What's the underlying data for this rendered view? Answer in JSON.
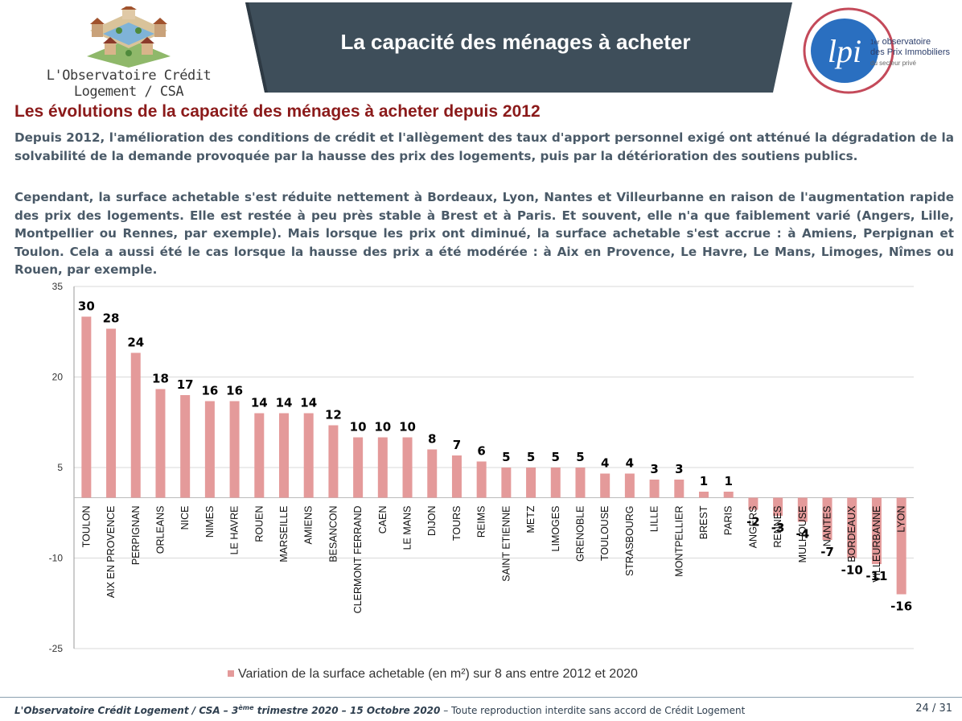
{
  "header": {
    "org_logo_caption": "L'Observatoire Crédit Logement / CSA",
    "title": "La capacité des ménages à acheter",
    "lpi_logo_mark": "lpi",
    "lpi_line1": "observatoire",
    "lpi_superscript": "1er",
    "lpi_line2": "des Prix Immobiliers",
    "lpi_line3": "du secteur privé"
  },
  "content": {
    "subtitle": "Les évolutions de la capacité des ménages à acheter depuis 2012",
    "paragraph1": "Depuis 2012, l'amélioration des conditions de crédit et l'allègement des taux d'apport personnel exigé ont atténué la dégradation de la solvabilité de la demande provoquée par la hausse des prix des logements, puis par la détérioration des soutiens publics.",
    "paragraph2": "Cependant, la surface achetable s'est réduite nettement à Bordeaux, Lyon, Nantes et Villeurbanne en raison de l'augmentation rapide des prix des logements. Elle est restée à peu près stable à Brest et à Paris. Et souvent, elle n'a que faiblement varié (Angers, Lille, Montpellier ou Rennes, par exemple). Mais lorsque les prix ont diminué, la surface achetable s'est accrue : à Amiens, Perpignan et Toulon. Cela a aussi été le cas lorsque la hausse des prix a été modérée : à Aix en Provence, Le Havre, Le Mans, Limoges, Nîmes ou Rouen, par exemple."
  },
  "chart_data": {
    "type": "bar",
    "categories": [
      "TOULON",
      "AIX EN PROVENCE",
      "PERPIGNAN",
      "ORLEANS",
      "NICE",
      "NIMES",
      "LE HAVRE",
      "ROUEN",
      "MARSEILLE",
      "AMIENS",
      "BESANCON",
      "CLERMONT FERRAND",
      "CAEN",
      "LE MANS",
      "DIJON",
      "TOURS",
      "REIMS",
      "SAINT ETIENNE",
      "METZ",
      "LIMOGES",
      "GRENOBLE",
      "TOULOUSE",
      "STRASBOURG",
      "LILLE",
      "MONTPELLIER",
      "BREST",
      "PARIS",
      "ANGERS",
      "RENNES",
      "MULHOUSE",
      "NANTES",
      "BORDEAUX",
      "VILLEURBANNE",
      "LYON"
    ],
    "values": [
      30,
      28,
      24,
      18,
      17,
      16,
      16,
      14,
      14,
      14,
      12,
      10,
      10,
      10,
      8,
      7,
      6,
      5,
      5,
      5,
      5,
      4,
      4,
      3,
      3,
      1,
      1,
      -2,
      -3,
      -4,
      -7,
      -10,
      -11,
      -16
    ],
    "series_name": "Variation de la surface achetable (en m²) sur 8 ans entre 2012 et 2020",
    "ylim": [
      -25,
      35
    ],
    "yticks": [
      -25,
      -10,
      5,
      20,
      35
    ],
    "bar_color": "#e49a9a",
    "grid": true,
    "legend": "bottom"
  },
  "footer": {
    "source_prefix": "L'Observatoire Crédit Logement / CSA – 3",
    "source_sup": "ème",
    "source_mid": " trimestre 2020 – 15 Octobre 2020",
    "notice": " – Toute reproduction interdite sans accord de Crédit Logement",
    "page": "24 / 31"
  }
}
